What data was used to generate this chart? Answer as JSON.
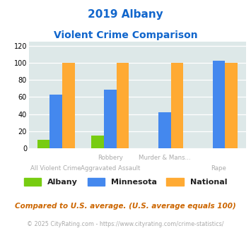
{
  "title_line1": "2019 Albany",
  "title_line2": "Violent Crime Comparison",
  "albany_vals": [
    10,
    15,
    0,
    0
  ],
  "minnesota_vals": [
    63,
    69,
    42,
    103
  ],
  "national_vals": [
    100,
    100,
    100,
    100
  ],
  "color_albany": "#77cc11",
  "color_minnesota": "#4488ee",
  "color_national": "#ffaa33",
  "ylabel_ticks": [
    0,
    20,
    40,
    60,
    80,
    100,
    120
  ],
  "ylim": [
    0,
    125
  ],
  "bg_color": "#dde8e8",
  "title_color": "#1166cc",
  "footnote1": "Compared to U.S. average. (U.S. average equals 100)",
  "footnote2": "© 2025 CityRating.com - https://www.cityrating.com/crime-statistics/",
  "footnote1_color": "#cc6600",
  "footnote2_color": "#aaaaaa",
  "legend_labels": [
    "Albany",
    "Minnesota",
    "National"
  ],
  "label_color": "#aaaaaa",
  "label_info": [
    [
      0,
      "",
      "All Violent Crime"
    ],
    [
      1,
      "Robbery",
      "Aggravated Assault"
    ],
    [
      2,
      "Murder & Mans...",
      ""
    ],
    [
      3,
      "",
      "Rape"
    ]
  ]
}
